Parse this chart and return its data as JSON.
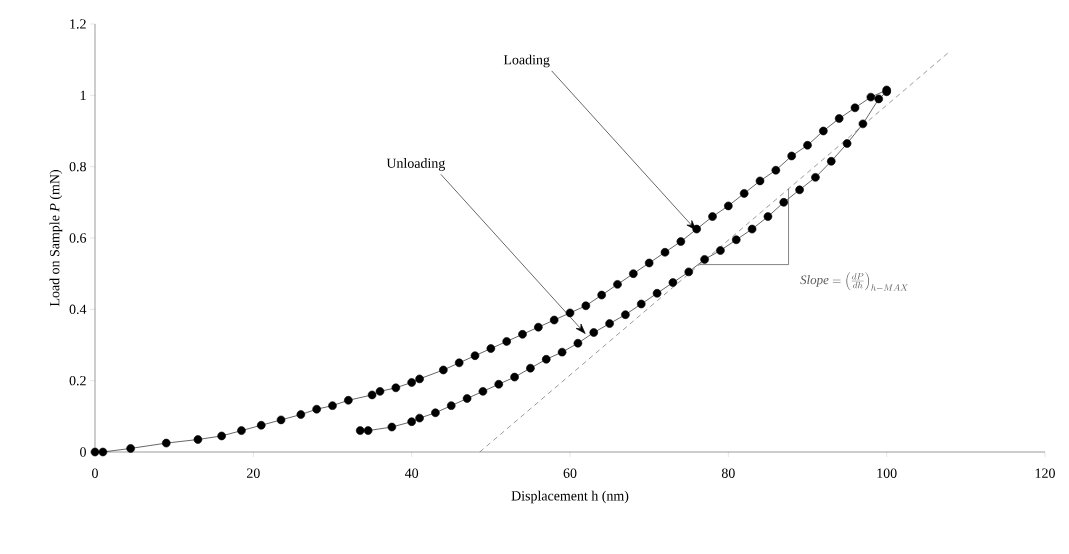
{
  "chart_data": {
    "type": "line",
    "xlabel": "Displacement h (nm)",
    "ylabel": "Load on Sample *P* (mN)",
    "xlim": [
      0,
      120
    ],
    "ylim": [
      0,
      1.2
    ],
    "xticks": [
      0,
      20,
      40,
      60,
      80,
      100,
      120
    ],
    "yticks": [
      0,
      0.2,
      0.4,
      0.6,
      0.8,
      1,
      1.2
    ],
    "marker": "circle",
    "grid": false,
    "series": [
      {
        "color": "#000000",
        "x": [
          0,
          1,
          4.5,
          9,
          13,
          16,
          18.5,
          21,
          23.5,
          26,
          28,
          30,
          32,
          35,
          36,
          38,
          40,
          41,
          44,
          46,
          48,
          50,
          52,
          54,
          56,
          58,
          60,
          62,
          64,
          66,
          68,
          70,
          72,
          74,
          76,
          78,
          80,
          82,
          84,
          86,
          88,
          90,
          92,
          94,
          96,
          98,
          100
        ],
        "values": [
          0,
          0,
          0.01,
          0.025,
          0.035,
          0.045,
          0.06,
          0.075,
          0.09,
          0.105,
          0.12,
          0.13,
          0.145,
          0.16,
          0.17,
          0.18,
          0.195,
          0.205,
          0.23,
          0.25,
          0.27,
          0.29,
          0.31,
          0.33,
          0.35,
          0.37,
          0.39,
          0.41,
          0.44,
          0.47,
          0.5,
          0.53,
          0.56,
          0.59,
          0.625,
          0.66,
          0.69,
          0.725,
          0.76,
          0.79,
          0.83,
          0.86,
          0.9,
          0.935,
          0.965,
          0.995,
          1.015
        ]
      },
      {
        "color": "#000000",
        "x": [
          100,
          99,
          97,
          95,
          93,
          91,
          89,
          87,
          85,
          83,
          81,
          79,
          77,
          75,
          73,
          71,
          69,
          67,
          65,
          63,
          61,
          59,
          57,
          55,
          53,
          51,
          49,
          47,
          45,
          43,
          41,
          40,
          37.5,
          34.5,
          33.5
        ],
        "values": [
          1.01,
          0.99,
          0.92,
          0.865,
          0.815,
          0.77,
          0.735,
          0.7,
          0.66,
          0.625,
          0.595,
          0.565,
          0.54,
          0.505,
          0.475,
          0.445,
          0.415,
          0.385,
          0.36,
          0.335,
          0.305,
          0.28,
          0.26,
          0.235,
          0.21,
          0.19,
          0.17,
          0.15,
          0.13,
          0.11,
          0.095,
          0.085,
          0.07,
          0.06,
          0.06
        ]
      },
      {
        "type": "line",
        "color": "#555555",
        "marker": "none",
        "line_style": "dashed",
        "x": [
          48.6,
          107.7
        ],
        "values": [
          0,
          1.118
        ]
      }
    ],
    "annotations": [
      {
        "text": "Loading",
        "x": 76,
        "y": 0.62
      },
      {
        "text": "Unloading",
        "x": 62,
        "y": 0.33
      },
      "\\mathit{Slope} = \\left(\\frac{dP}{dh}\\right)_{h-MAX}"
    ]
  }
}
